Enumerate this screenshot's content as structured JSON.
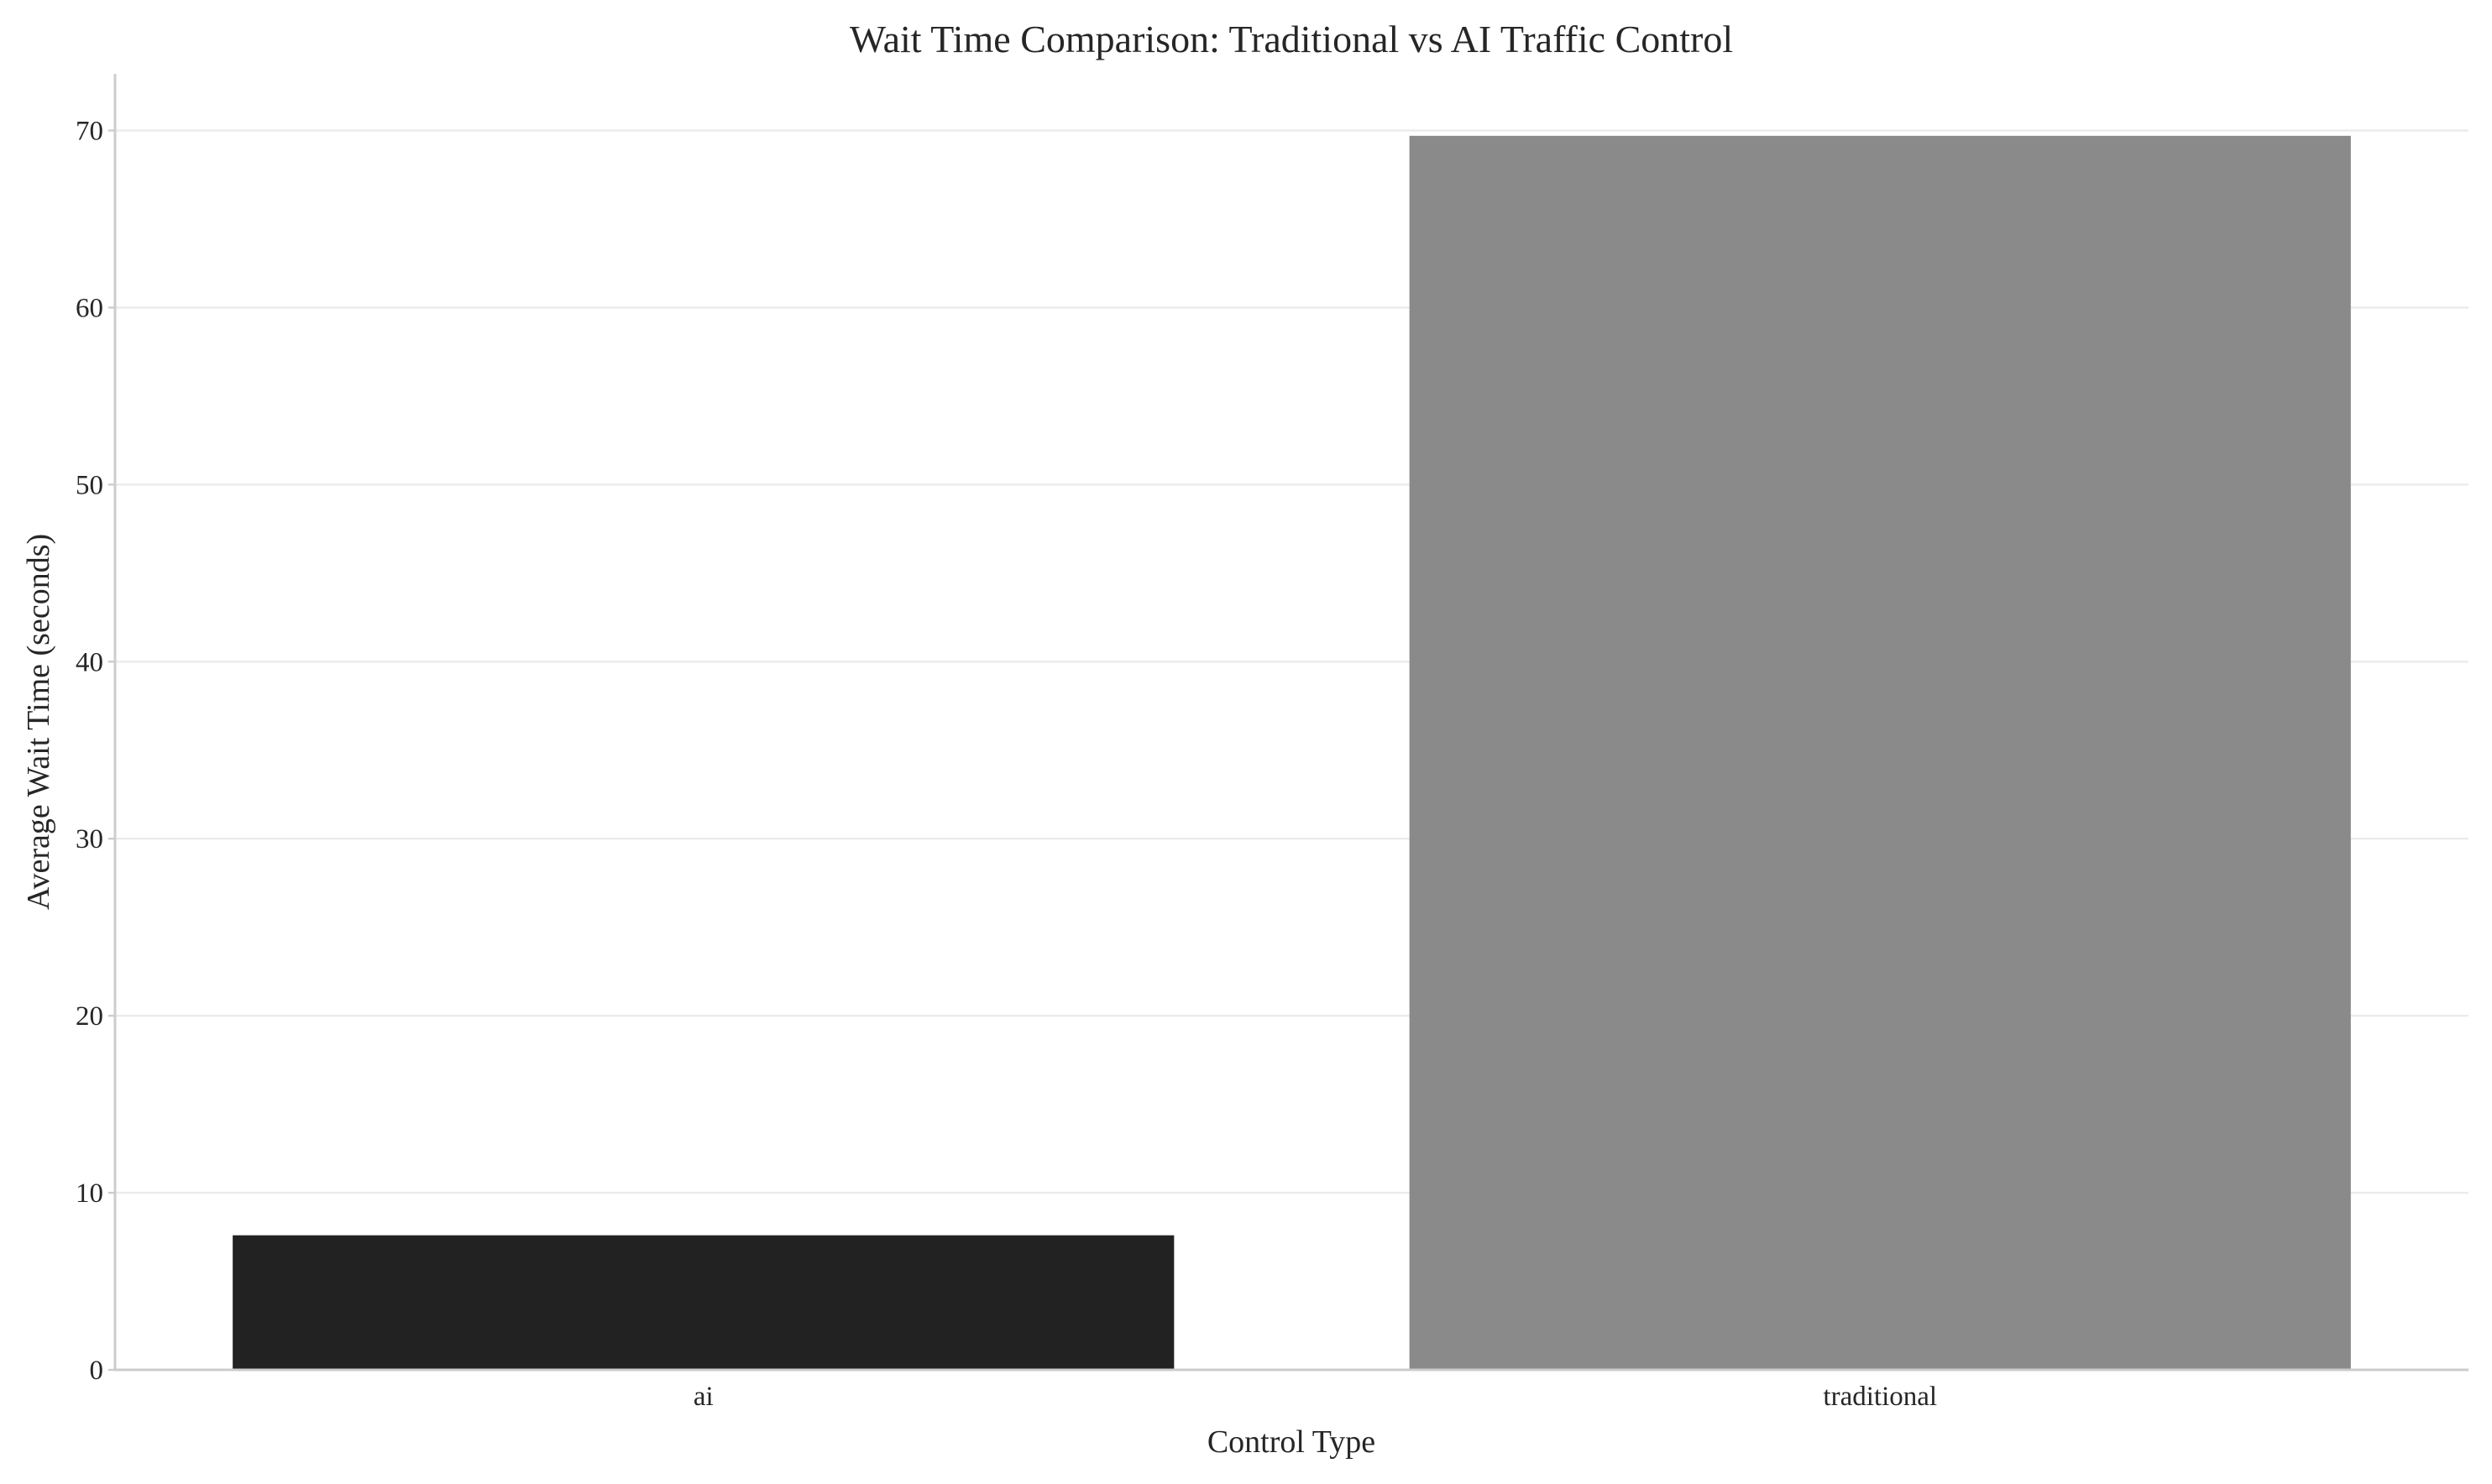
{
  "chart_data": {
    "type": "bar",
    "title": "Wait Time Comparison: Traditional vs AI Traffic Control",
    "xlabel": "Control Type",
    "ylabel": "Average Wait Time (seconds)",
    "categories": [
      "ai",
      "traditional"
    ],
    "values": [
      7.6,
      69.7
    ],
    "bar_colors": [
      "#222222",
      "#8a8a8a"
    ],
    "ylim": [
      0,
      73.2
    ],
    "yticks": [
      0,
      10,
      20,
      30,
      40,
      50,
      60,
      70
    ],
    "grid": "horizontal",
    "legend": "none"
  }
}
